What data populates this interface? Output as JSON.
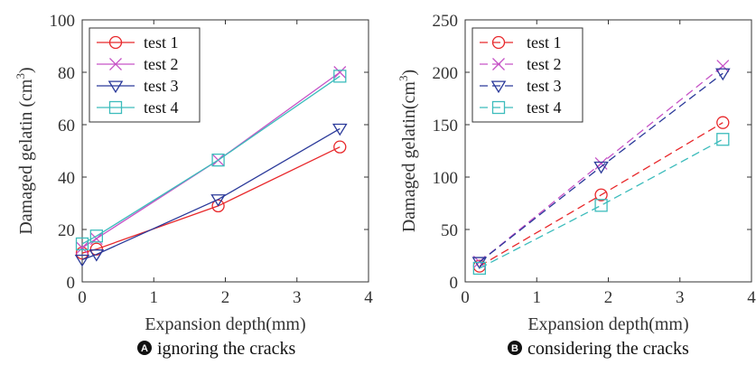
{
  "charts": [
    {
      "badge": "A",
      "caption": "ignoring the cracks",
      "chart_data": {
        "type": "line",
        "xlabel": "Expansion depth(mm)",
        "ylabel": "Damaged gelatin (cm",
        "ylabel_sup": "3",
        "ylabel_close": ")",
        "xlim": [
          0,
          4
        ],
        "ylim": [
          0,
          100
        ],
        "xticks": [
          "0",
          "1",
          "2",
          "3",
          "4"
        ],
        "yticks": [
          "0",
          "20",
          "40",
          "60",
          "80",
          "100"
        ],
        "grid": false,
        "legend_position": "top-left",
        "series": [
          {
            "name": "test 1",
            "color": "#e8282b",
            "marker": "circle",
            "dash": "solid",
            "x": [
              0.0,
              0.2,
              1.9,
              3.6
            ],
            "y": [
              11.0,
              12.5,
              29.0,
              51.5
            ]
          },
          {
            "name": "test 2",
            "color": "#c653c6",
            "marker": "x",
            "dash": "solid",
            "x": [
              0.0,
              0.2,
              1.9,
              3.6
            ],
            "y": [
              13.0,
              16.5,
              46.5,
              80.0
            ]
          },
          {
            "name": "test 3",
            "color": "#2b3a9a",
            "marker": "triangle-down",
            "dash": "solid",
            "x": [
              0.0,
              0.2,
              1.9,
              3.6
            ],
            "y": [
              8.5,
              10.5,
              31.5,
              58.5
            ]
          },
          {
            "name": "test 4",
            "color": "#3cbcbc",
            "marker": "square",
            "dash": "solid",
            "x": [
              0.0,
              0.2,
              1.9,
              3.6
            ],
            "y": [
              14.5,
              17.5,
              46.5,
              78.5
            ]
          }
        ]
      }
    },
    {
      "badge": "B",
      "caption": "considering the cracks",
      "chart_data": {
        "type": "line",
        "xlabel": "Expansion depth(mm)",
        "ylabel": "Damaged gelatin(cm",
        "ylabel_sup": "3",
        "ylabel_close": ")",
        "xlim": [
          0,
          4
        ],
        "ylim": [
          0,
          250
        ],
        "xticks": [
          "0",
          "1",
          "2",
          "3",
          "4"
        ],
        "yticks": [
          "0",
          "50",
          "100",
          "150",
          "200",
          "250"
        ],
        "grid": false,
        "legend_position": "top-left",
        "series": [
          {
            "name": "test 1",
            "color": "#e8282b",
            "marker": "circle",
            "dash": "dashed",
            "x": [
              0.2,
              1.9,
              3.6
            ],
            "y": [
              15.0,
              83.0,
              152.0
            ]
          },
          {
            "name": "test 2",
            "color": "#c653c6",
            "marker": "x",
            "dash": "dashed",
            "x": [
              0.2,
              1.9,
              3.6
            ],
            "y": [
              19.0,
              113.0,
              206.0
            ]
          },
          {
            "name": "test 3",
            "color": "#2b3a9a",
            "marker": "triangle-down",
            "dash": "dashed",
            "x": [
              0.2,
              1.9,
              3.6
            ],
            "y": [
              19.0,
              110.0,
              199.0
            ]
          },
          {
            "name": "test 4",
            "color": "#3cbcbc",
            "marker": "square",
            "dash": "dashed",
            "x": [
              0.2,
              1.9,
              3.6
            ],
            "y": [
              13.0,
              73.0,
              136.0
            ]
          }
        ]
      }
    }
  ]
}
